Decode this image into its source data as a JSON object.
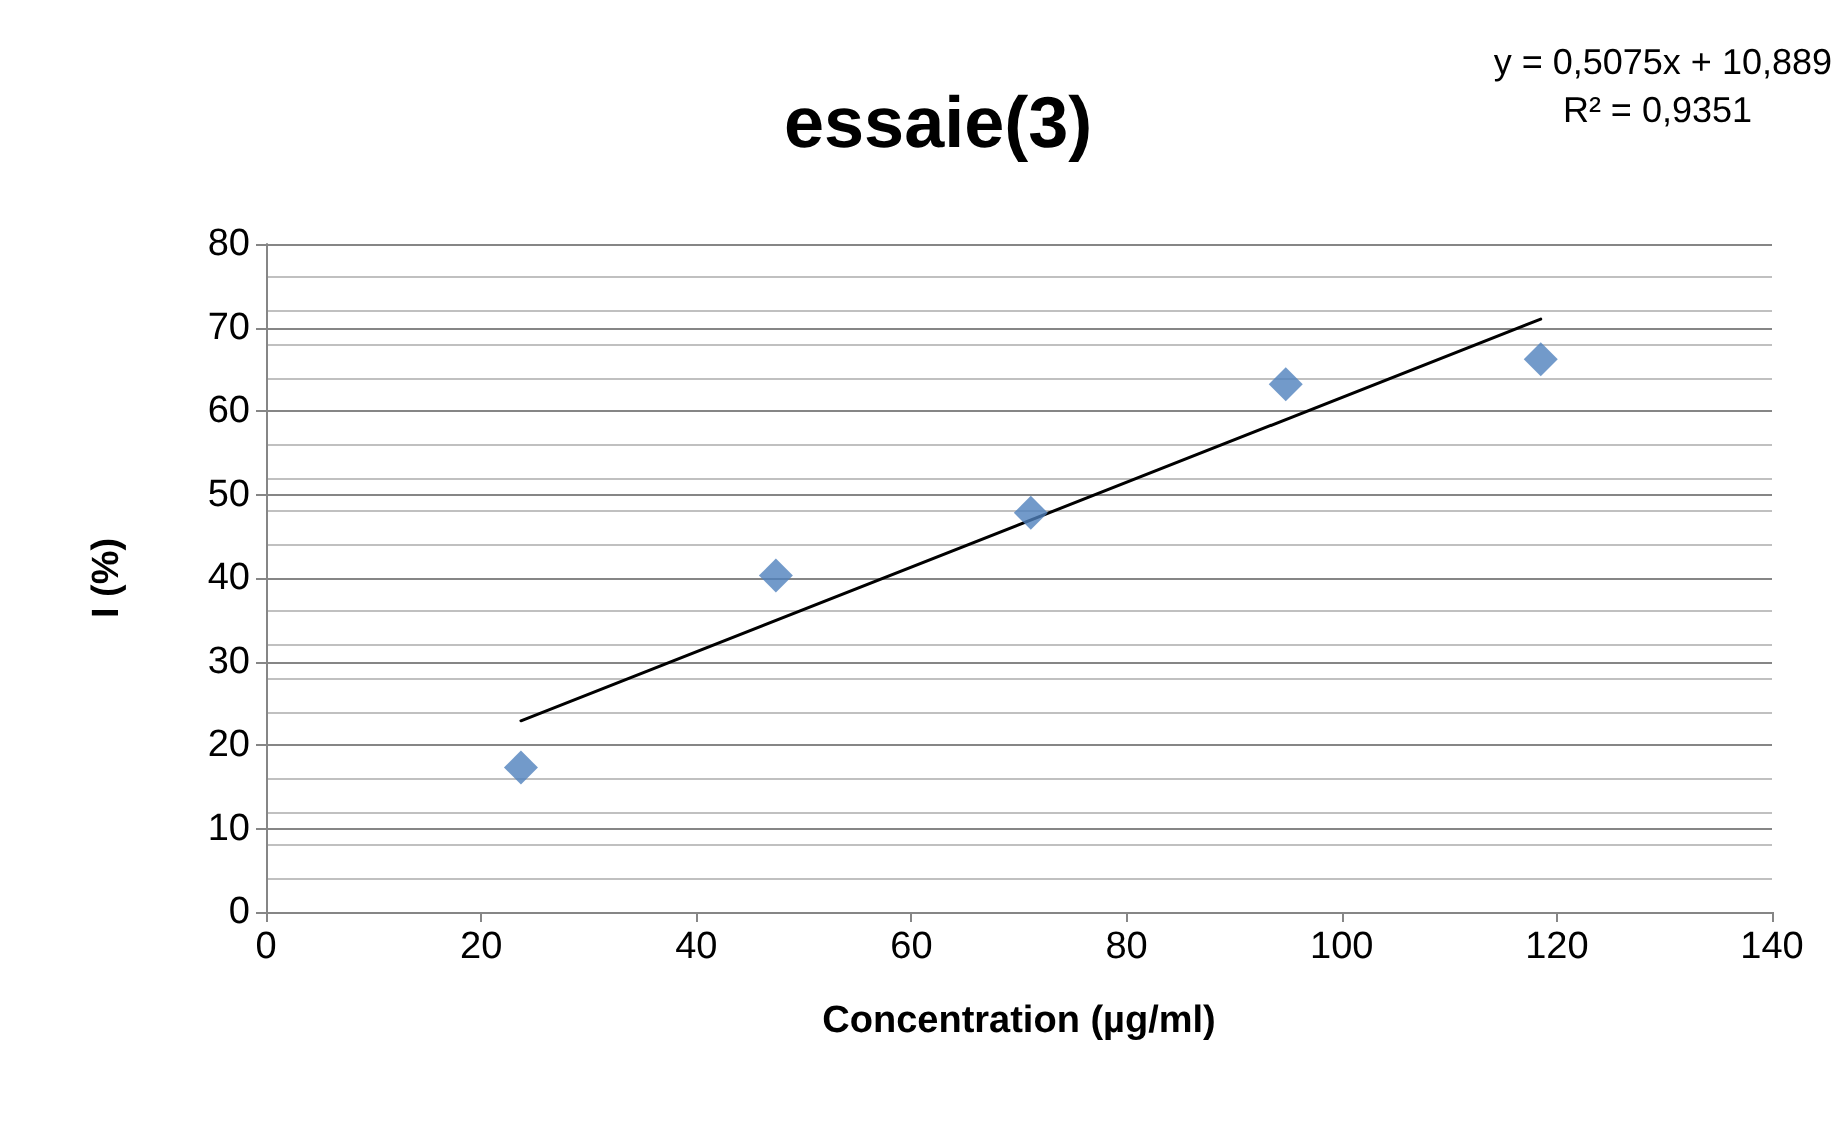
{
  "chart_data": {
    "type": "scatter",
    "title": "essaie(3)",
    "xlabel": "Concentration (µg/ml)",
    "ylabel": "I (%)",
    "annotations": [
      "y = 0,5075x + 10,889",
      "R² = 0,9351"
    ],
    "xlim": [
      0,
      140
    ],
    "xticks": [
      0,
      20,
      40,
      60,
      80,
      100,
      120,
      140
    ],
    "ylim": [
      0,
      80
    ],
    "yticks": [
      0,
      10,
      20,
      30,
      40,
      50,
      60,
      70,
      80
    ],
    "grid": "y",
    "marker": "diamond",
    "series": [
      {
        "color": "#4f81bd",
        "x": [
          23.7,
          47.4,
          71.1,
          94.8,
          118.5
        ],
        "values": [
          17.3,
          40.3,
          47.8,
          63.2,
          66.2
        ]
      },
      {
        "type": "line",
        "color": "#000000",
        "line_style": "solid",
        "marker": "none",
        "x": [
          23.7,
          118.5
        ],
        "values": [
          22.9,
          71.0
        ]
      }
    ]
  }
}
